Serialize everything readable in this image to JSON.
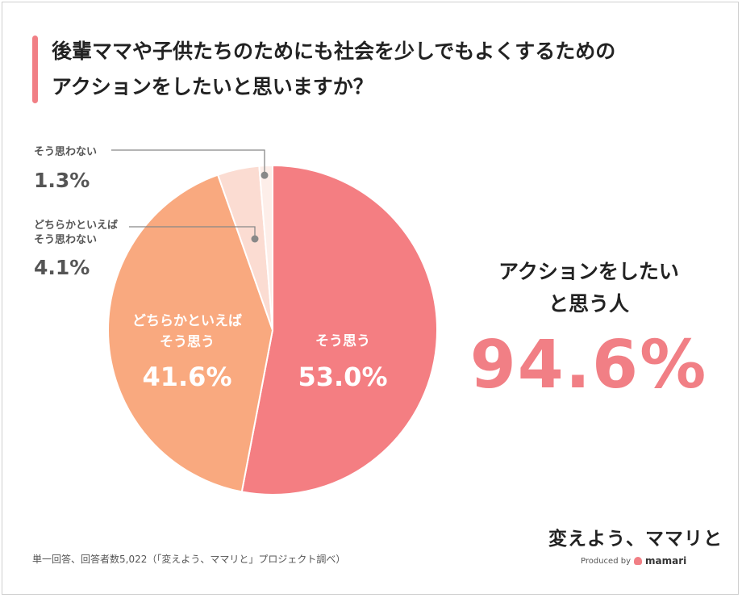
{
  "title": {
    "line1": "後輩ママや子供たちのためにも社会を少しでもよくするための",
    "line2": "アクションをしたいと思いますか？"
  },
  "colors": {
    "accent": "#f17f85",
    "agree": "#f47e82",
    "somewhat_agree": "#f9a97f",
    "somewhat_disagree": "#fbdcd2",
    "disagree": "#fdeee9",
    "label_gray": "#555555"
  },
  "chart_data": {
    "type": "pie",
    "slices": [
      {
        "label": "そう思う",
        "value": 53.0,
        "display": "53.0%"
      },
      {
        "label_lines": [
          "どちらかといえば",
          "そう思う"
        ],
        "value": 41.6,
        "display": "41.6%"
      },
      {
        "label_lines": [
          "どちらかといえば",
          "そう思わない"
        ],
        "value": 4.1,
        "display": "4.1%"
      },
      {
        "label": "そう思わない",
        "value": 1.3,
        "display": "1.3%"
      }
    ]
  },
  "summary": {
    "line1": "アクションをしたい",
    "line2": "と思う人",
    "value": "94.6%"
  },
  "footnote": "単一回答、回答者数5,022（「変えよう、ママリと」プロジェクト調べ）",
  "brand": {
    "name": "変えよう、ママリと",
    "produced_by": "Produced by",
    "logo_text": "mamari",
    "logo_icon": "mamari-logo-icon"
  }
}
